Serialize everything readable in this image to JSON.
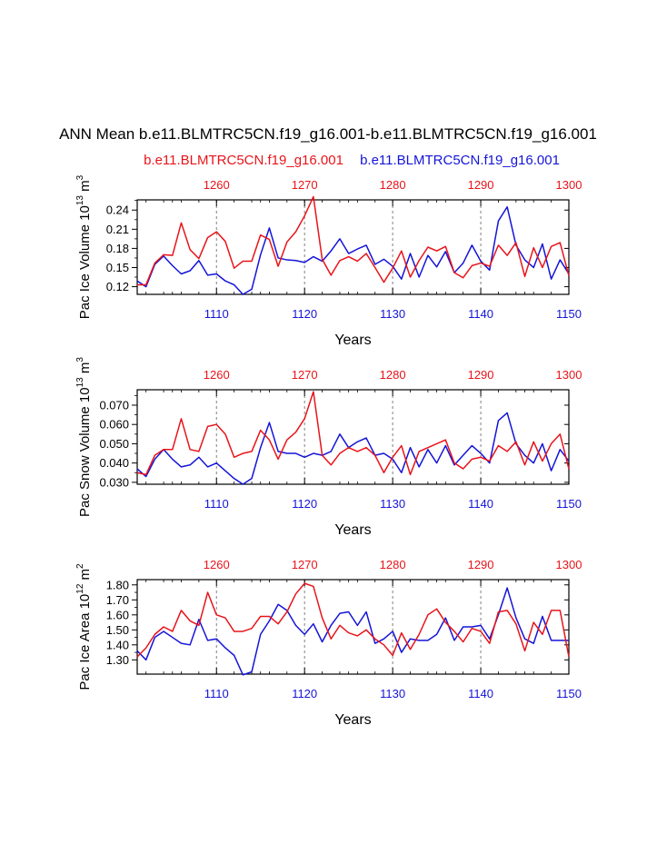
{
  "title": "ANN Mean b.e11.BLMTRC5CN.f19_g16.001-b.e11.BLMTRC5CN.f19_g16.001",
  "legend": {
    "red_case": "b.e11.BLMTRC5CN.f19_g16.001",
    "blue_case": "b.e11.BLMTRC5CN.f19_g16.001"
  },
  "colors": {
    "red": "#e8141a",
    "blue": "#1414d8",
    "grid": "#808080",
    "axis": "#000000"
  },
  "chart_data": [
    {
      "type": "line",
      "ylabel": "Pac Ice Volume",
      "ylabel_unit": "10",
      "ylabel_exp": "13",
      "ylabel_tail": "m",
      "ylabel_tail_exp": "3",
      "xlabel": "Years",
      "ylim": [
        0.108,
        0.256
      ],
      "yticks": [
        0.12,
        0.15,
        0.18,
        0.21,
        0.24
      ],
      "ytick_labels": [
        "0.12",
        "0.15",
        "0.18",
        "0.21",
        "0.24"
      ],
      "x_bottom": {
        "range": [
          1101,
          1150
        ],
        "ticks": [
          1110,
          1120,
          1130,
          1140,
          1150
        ],
        "labels": [
          "1110",
          "1120",
          "1130",
          "1140",
          "1150"
        ]
      },
      "x_top": {
        "range": [
          1251,
          1300
        ],
        "ticks": [
          1260,
          1270,
          1280,
          1290,
          1300
        ],
        "labels": [
          "1260",
          "1270",
          "1280",
          "1290",
          "1300"
        ]
      },
      "series": [
        {
          "name": "b.e11.BLMTRC5CN.f19_g16.001 (red, top axis)",
          "color": "red",
          "x": [
            1251,
            1252,
            1253,
            1254,
            1255,
            1256,
            1257,
            1258,
            1259,
            1260,
            1261,
            1262,
            1263,
            1264,
            1265,
            1266,
            1267,
            1268,
            1269,
            1270,
            1271,
            1272,
            1273,
            1274,
            1275,
            1276,
            1277,
            1278,
            1279,
            1280,
            1281,
            1282,
            1283,
            1284,
            1285,
            1286,
            1287,
            1288,
            1289,
            1290,
            1291,
            1292,
            1293,
            1294,
            1295,
            1296,
            1297,
            1298,
            1299,
            1300
          ],
          "values": [
            0.123,
            0.123,
            0.157,
            0.17,
            0.169,
            0.22,
            0.178,
            0.164,
            0.197,
            0.206,
            0.191,
            0.149,
            0.16,
            0.16,
            0.201,
            0.194,
            0.152,
            0.19,
            0.206,
            0.231,
            0.261,
            0.163,
            0.138,
            0.161,
            0.167,
            0.16,
            0.172,
            0.15,
            0.127,
            0.149,
            0.176,
            0.135,
            0.161,
            0.182,
            0.176,
            0.183,
            0.142,
            0.134,
            0.153,
            0.157,
            0.152,
            0.185,
            0.169,
            0.189,
            0.136,
            0.181,
            0.15,
            0.183,
            0.189,
            0.137
          ]
        },
        {
          "name": "b.e11.BLMTRC5CN.f19_g16.001 (blue, bottom axis)",
          "color": "blue",
          "x": [
            1101,
            1102,
            1103,
            1104,
            1105,
            1106,
            1107,
            1108,
            1109,
            1110,
            1111,
            1112,
            1113,
            1114,
            1115,
            1116,
            1117,
            1118,
            1119,
            1120,
            1121,
            1122,
            1123,
            1124,
            1125,
            1126,
            1127,
            1128,
            1129,
            1130,
            1131,
            1132,
            1133,
            1134,
            1135,
            1136,
            1137,
            1138,
            1139,
            1140,
            1141,
            1142,
            1143,
            1144,
            1145,
            1146,
            1147,
            1148,
            1149,
            1150
          ],
          "values": [
            0.129,
            0.12,
            0.155,
            0.168,
            0.153,
            0.14,
            0.145,
            0.161,
            0.138,
            0.14,
            0.129,
            0.123,
            0.108,
            0.116,
            0.17,
            0.212,
            0.165,
            0.162,
            0.161,
            0.158,
            0.167,
            0.16,
            0.176,
            0.195,
            0.172,
            0.179,
            0.185,
            0.155,
            0.163,
            0.152,
            0.132,
            0.172,
            0.135,
            0.169,
            0.151,
            0.175,
            0.142,
            0.157,
            0.185,
            0.16,
            0.146,
            0.223,
            0.245,
            0.185,
            0.162,
            0.15,
            0.187,
            0.132,
            0.162,
            0.14
          ]
        }
      ]
    },
    {
      "type": "line",
      "ylabel": "Pac Snow Volume",
      "ylabel_unit": "10",
      "ylabel_exp": "13",
      "ylabel_tail": "m",
      "ylabel_tail_exp": "3",
      "xlabel": "Years",
      "ylim": [
        0.029,
        0.078
      ],
      "yticks": [
        0.03,
        0.04,
        0.05,
        0.06,
        0.07
      ],
      "ytick_labels": [
        "0.030",
        "0.040",
        "0.050",
        "0.060",
        "0.070"
      ],
      "x_bottom": {
        "range": [
          1101,
          1150
        ],
        "ticks": [
          1110,
          1120,
          1130,
          1140,
          1150
        ],
        "labels": [
          "1110",
          "1120",
          "1130",
          "1140",
          "1150"
        ]
      },
      "x_top": {
        "range": [
          1251,
          1300
        ],
        "ticks": [
          1260,
          1270,
          1280,
          1290,
          1300
        ],
        "labels": [
          "1260",
          "1270",
          "1280",
          "1290",
          "1300"
        ]
      },
      "series": [
        {
          "name": "b.e11.BLMTRC5CN.f19_g16.001 (red, top axis)",
          "color": "red",
          "x": [
            1251,
            1252,
            1253,
            1254,
            1255,
            1256,
            1257,
            1258,
            1259,
            1260,
            1261,
            1262,
            1263,
            1264,
            1265,
            1266,
            1267,
            1268,
            1269,
            1270,
            1271,
            1272,
            1273,
            1274,
            1275,
            1276,
            1277,
            1278,
            1279,
            1280,
            1281,
            1282,
            1283,
            1284,
            1285,
            1286,
            1287,
            1288,
            1289,
            1290,
            1291,
            1292,
            1293,
            1294,
            1295,
            1296,
            1297,
            1298,
            1299,
            1300
          ],
          "values": [
            0.035,
            0.034,
            0.044,
            0.047,
            0.047,
            0.063,
            0.047,
            0.046,
            0.059,
            0.06,
            0.055,
            0.043,
            0.045,
            0.046,
            0.057,
            0.052,
            0.042,
            0.052,
            0.056,
            0.063,
            0.077,
            0.044,
            0.039,
            0.045,
            0.048,
            0.046,
            0.048,
            0.044,
            0.035,
            0.043,
            0.049,
            0.034,
            0.046,
            0.048,
            0.05,
            0.052,
            0.04,
            0.037,
            0.042,
            0.043,
            0.041,
            0.049,
            0.046,
            0.051,
            0.039,
            0.051,
            0.041,
            0.05,
            0.055,
            0.037
          ]
        },
        {
          "name": "b.e11.BLMTRC5CN.f19_g16.001 (blue, bottom axis)",
          "color": "blue",
          "x": [
            1101,
            1102,
            1103,
            1104,
            1105,
            1106,
            1107,
            1108,
            1109,
            1110,
            1111,
            1112,
            1113,
            1114,
            1115,
            1116,
            1117,
            1118,
            1119,
            1120,
            1121,
            1122,
            1123,
            1124,
            1125,
            1126,
            1127,
            1128,
            1129,
            1130,
            1131,
            1132,
            1133,
            1134,
            1135,
            1136,
            1137,
            1138,
            1139,
            1140,
            1141,
            1142,
            1143,
            1144,
            1145,
            1146,
            1147,
            1148,
            1149,
            1150
          ],
          "values": [
            0.037,
            0.033,
            0.042,
            0.047,
            0.042,
            0.038,
            0.039,
            0.043,
            0.038,
            0.04,
            0.036,
            0.032,
            0.029,
            0.032,
            0.048,
            0.061,
            0.046,
            0.045,
            0.045,
            0.043,
            0.045,
            0.044,
            0.046,
            0.055,
            0.048,
            0.051,
            0.053,
            0.044,
            0.045,
            0.042,
            0.035,
            0.048,
            0.038,
            0.047,
            0.04,
            0.049,
            0.039,
            0.044,
            0.049,
            0.045,
            0.04,
            0.062,
            0.066,
            0.05,
            0.044,
            0.04,
            0.05,
            0.036,
            0.047,
            0.041
          ]
        }
      ]
    },
    {
      "type": "line",
      "ylabel": "Pac Ice Area",
      "ylabel_unit": "10",
      "ylabel_exp": "12",
      "ylabel_tail": "m",
      "ylabel_tail_exp": "2",
      "xlabel": "Years",
      "ylim": [
        1.205,
        1.835
      ],
      "yticks": [
        1.3,
        1.4,
        1.5,
        1.6,
        1.7,
        1.8
      ],
      "ytick_labels": [
        "1.30",
        "1.40",
        "1.50",
        "1.60",
        "1.70",
        "1.80"
      ],
      "x_bottom": {
        "range": [
          1101,
          1150
        ],
        "ticks": [
          1110,
          1120,
          1130,
          1140,
          1150
        ],
        "labels": [
          "1110",
          "1120",
          "1130",
          "1140",
          "1150"
        ]
      },
      "x_top": {
        "range": [
          1251,
          1300
        ],
        "ticks": [
          1260,
          1270,
          1280,
          1290,
          1300
        ],
        "labels": [
          "1260",
          "1270",
          "1280",
          "1290",
          "1300"
        ]
      },
      "series": [
        {
          "name": "b.e11.BLMTRC5CN.f19_g16.001 (red, top axis)",
          "color": "red",
          "x": [
            1251,
            1252,
            1253,
            1254,
            1255,
            1256,
            1257,
            1258,
            1259,
            1260,
            1261,
            1262,
            1263,
            1264,
            1265,
            1266,
            1267,
            1268,
            1269,
            1270,
            1271,
            1272,
            1273,
            1274,
            1275,
            1276,
            1277,
            1278,
            1279,
            1280,
            1281,
            1282,
            1283,
            1284,
            1285,
            1286,
            1287,
            1288,
            1289,
            1290,
            1291,
            1292,
            1293,
            1294,
            1295,
            1296,
            1297,
            1298,
            1299,
            1300
          ],
          "values": [
            1.32,
            1.38,
            1.47,
            1.52,
            1.49,
            1.63,
            1.56,
            1.53,
            1.75,
            1.6,
            1.58,
            1.49,
            1.49,
            1.51,
            1.59,
            1.59,
            1.54,
            1.62,
            1.74,
            1.81,
            1.79,
            1.58,
            1.44,
            1.53,
            1.48,
            1.46,
            1.5,
            1.44,
            1.4,
            1.33,
            1.48,
            1.37,
            1.47,
            1.6,
            1.64,
            1.55,
            1.49,
            1.42,
            1.51,
            1.49,
            1.41,
            1.62,
            1.63,
            1.54,
            1.36,
            1.55,
            1.47,
            1.63,
            1.63,
            1.32
          ]
        },
        {
          "name": "b.e11.BLMTRC5CN.f19_g16.001 (blue, bottom axis)",
          "color": "blue",
          "x": [
            1101,
            1102,
            1103,
            1104,
            1105,
            1106,
            1107,
            1108,
            1109,
            1110,
            1111,
            1112,
            1113,
            1114,
            1115,
            1116,
            1117,
            1118,
            1119,
            1120,
            1121,
            1122,
            1123,
            1124,
            1125,
            1126,
            1127,
            1128,
            1129,
            1130,
            1131,
            1132,
            1133,
            1134,
            1135,
            1136,
            1137,
            1138,
            1139,
            1140,
            1141,
            1142,
            1143,
            1144,
            1145,
            1146,
            1147,
            1148,
            1149,
            1150
          ],
          "values": [
            1.36,
            1.3,
            1.45,
            1.49,
            1.45,
            1.41,
            1.4,
            1.57,
            1.43,
            1.44,
            1.38,
            1.33,
            1.2,
            1.22,
            1.47,
            1.56,
            1.67,
            1.63,
            1.53,
            1.47,
            1.54,
            1.42,
            1.53,
            1.61,
            1.62,
            1.53,
            1.62,
            1.41,
            1.44,
            1.49,
            1.35,
            1.44,
            1.43,
            1.43,
            1.47,
            1.58,
            1.43,
            1.52,
            1.52,
            1.53,
            1.44,
            1.6,
            1.78,
            1.58,
            1.44,
            1.41,
            1.59,
            1.43,
            1.43,
            1.43
          ]
        }
      ]
    }
  ]
}
